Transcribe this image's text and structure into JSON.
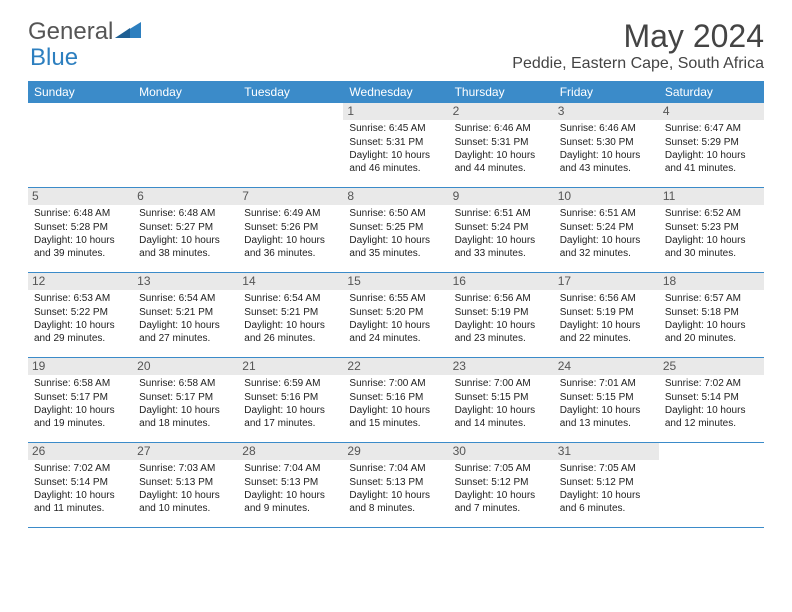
{
  "brand": {
    "name_a": "General",
    "name_b": "Blue"
  },
  "title": "May 2024",
  "location": "Peddie, Eastern Cape, South Africa",
  "colors": {
    "header_bg": "#3b8bc9",
    "header_text": "#ffffff",
    "daynum_bg": "#e9e9e9",
    "daynum_text": "#555555",
    "rule": "#3b8bc9",
    "logo_blue": "#2d7fbf",
    "text": "#222222"
  },
  "day_names": [
    "Sunday",
    "Monday",
    "Tuesday",
    "Wednesday",
    "Thursday",
    "Friday",
    "Saturday"
  ],
  "weeks": [
    [
      null,
      null,
      null,
      {
        "n": "1",
        "sunrise": "6:45 AM",
        "sunset": "5:31 PM",
        "dl": "10 hours and 46 minutes."
      },
      {
        "n": "2",
        "sunrise": "6:46 AM",
        "sunset": "5:31 PM",
        "dl": "10 hours and 44 minutes."
      },
      {
        "n": "3",
        "sunrise": "6:46 AM",
        "sunset": "5:30 PM",
        "dl": "10 hours and 43 minutes."
      },
      {
        "n": "4",
        "sunrise": "6:47 AM",
        "sunset": "5:29 PM",
        "dl": "10 hours and 41 minutes."
      }
    ],
    [
      {
        "n": "5",
        "sunrise": "6:48 AM",
        "sunset": "5:28 PM",
        "dl": "10 hours and 39 minutes."
      },
      {
        "n": "6",
        "sunrise": "6:48 AM",
        "sunset": "5:27 PM",
        "dl": "10 hours and 38 minutes."
      },
      {
        "n": "7",
        "sunrise": "6:49 AM",
        "sunset": "5:26 PM",
        "dl": "10 hours and 36 minutes."
      },
      {
        "n": "8",
        "sunrise": "6:50 AM",
        "sunset": "5:25 PM",
        "dl": "10 hours and 35 minutes."
      },
      {
        "n": "9",
        "sunrise": "6:51 AM",
        "sunset": "5:24 PM",
        "dl": "10 hours and 33 minutes."
      },
      {
        "n": "10",
        "sunrise": "6:51 AM",
        "sunset": "5:24 PM",
        "dl": "10 hours and 32 minutes."
      },
      {
        "n": "11",
        "sunrise": "6:52 AM",
        "sunset": "5:23 PM",
        "dl": "10 hours and 30 minutes."
      }
    ],
    [
      {
        "n": "12",
        "sunrise": "6:53 AM",
        "sunset": "5:22 PM",
        "dl": "10 hours and 29 minutes."
      },
      {
        "n": "13",
        "sunrise": "6:54 AM",
        "sunset": "5:21 PM",
        "dl": "10 hours and 27 minutes."
      },
      {
        "n": "14",
        "sunrise": "6:54 AM",
        "sunset": "5:21 PM",
        "dl": "10 hours and 26 minutes."
      },
      {
        "n": "15",
        "sunrise": "6:55 AM",
        "sunset": "5:20 PM",
        "dl": "10 hours and 24 minutes."
      },
      {
        "n": "16",
        "sunrise": "6:56 AM",
        "sunset": "5:19 PM",
        "dl": "10 hours and 23 minutes."
      },
      {
        "n": "17",
        "sunrise": "6:56 AM",
        "sunset": "5:19 PM",
        "dl": "10 hours and 22 minutes."
      },
      {
        "n": "18",
        "sunrise": "6:57 AM",
        "sunset": "5:18 PM",
        "dl": "10 hours and 20 minutes."
      }
    ],
    [
      {
        "n": "19",
        "sunrise": "6:58 AM",
        "sunset": "5:17 PM",
        "dl": "10 hours and 19 minutes."
      },
      {
        "n": "20",
        "sunrise": "6:58 AM",
        "sunset": "5:17 PM",
        "dl": "10 hours and 18 minutes."
      },
      {
        "n": "21",
        "sunrise": "6:59 AM",
        "sunset": "5:16 PM",
        "dl": "10 hours and 17 minutes."
      },
      {
        "n": "22",
        "sunrise": "7:00 AM",
        "sunset": "5:16 PM",
        "dl": "10 hours and 15 minutes."
      },
      {
        "n": "23",
        "sunrise": "7:00 AM",
        "sunset": "5:15 PM",
        "dl": "10 hours and 14 minutes."
      },
      {
        "n": "24",
        "sunrise": "7:01 AM",
        "sunset": "5:15 PM",
        "dl": "10 hours and 13 minutes."
      },
      {
        "n": "25",
        "sunrise": "7:02 AM",
        "sunset": "5:14 PM",
        "dl": "10 hours and 12 minutes."
      }
    ],
    [
      {
        "n": "26",
        "sunrise": "7:02 AM",
        "sunset": "5:14 PM",
        "dl": "10 hours and 11 minutes."
      },
      {
        "n": "27",
        "sunrise": "7:03 AM",
        "sunset": "5:13 PM",
        "dl": "10 hours and 10 minutes."
      },
      {
        "n": "28",
        "sunrise": "7:04 AM",
        "sunset": "5:13 PM",
        "dl": "10 hours and 9 minutes."
      },
      {
        "n": "29",
        "sunrise": "7:04 AM",
        "sunset": "5:13 PM",
        "dl": "10 hours and 8 minutes."
      },
      {
        "n": "30",
        "sunrise": "7:05 AM",
        "sunset": "5:12 PM",
        "dl": "10 hours and 7 minutes."
      },
      {
        "n": "31",
        "sunrise": "7:05 AM",
        "sunset": "5:12 PM",
        "dl": "10 hours and 6 minutes."
      },
      null
    ]
  ],
  "labels": {
    "sunrise_prefix": "Sunrise: ",
    "sunset_prefix": "Sunset: ",
    "daylight_prefix": "Daylight: "
  }
}
